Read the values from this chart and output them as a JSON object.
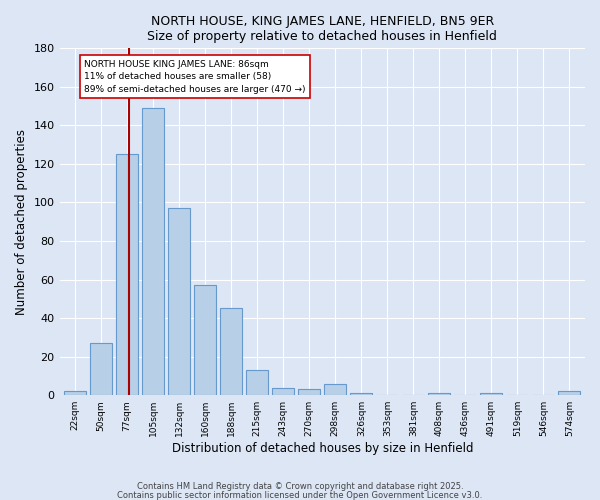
{
  "title": "NORTH HOUSE, KING JAMES LANE, HENFIELD, BN5 9ER",
  "subtitle": "Size of property relative to detached houses in Henfield",
  "xlabel": "Distribution of detached houses by size in Henfield",
  "ylabel": "Number of detached properties",
  "bar_labels": [
    "22sqm",
    "50sqm",
    "77sqm",
    "105sqm",
    "132sqm",
    "160sqm",
    "188sqm",
    "215sqm",
    "243sqm",
    "270sqm",
    "298sqm",
    "326sqm",
    "353sqm",
    "381sqm",
    "408sqm",
    "436sqm",
    "491sqm",
    "519sqm",
    "546sqm",
    "574sqm"
  ],
  "bar_values": [
    2,
    27,
    125,
    149,
    97,
    57,
    45,
    13,
    4,
    3,
    6,
    1,
    0,
    0,
    1,
    0,
    1,
    0,
    0,
    2
  ],
  "bar_color": "#b8cfe8",
  "bar_edge_color": "#6699cc",
  "background_color": "#dce6f5",
  "grid_color": "#ffffff",
  "vline_x": 2.07,
  "vline_color": "#aa0000",
  "annotation_text": "NORTH HOUSE KING JAMES LANE: 86sqm\n11% of detached houses are smaller (58)\n89% of semi-detached houses are larger (470 →)",
  "annotation_box_color": "#ffffff",
  "annotation_box_edge": "#cc0000",
  "ylim": [
    0,
    180
  ],
  "yticks": [
    0,
    20,
    40,
    60,
    80,
    100,
    120,
    140,
    160,
    180
  ],
  "footer1": "Contains HM Land Registry data © Crown copyright and database right 2025.",
  "footer2": "Contains public sector information licensed under the Open Government Licence v3.0."
}
